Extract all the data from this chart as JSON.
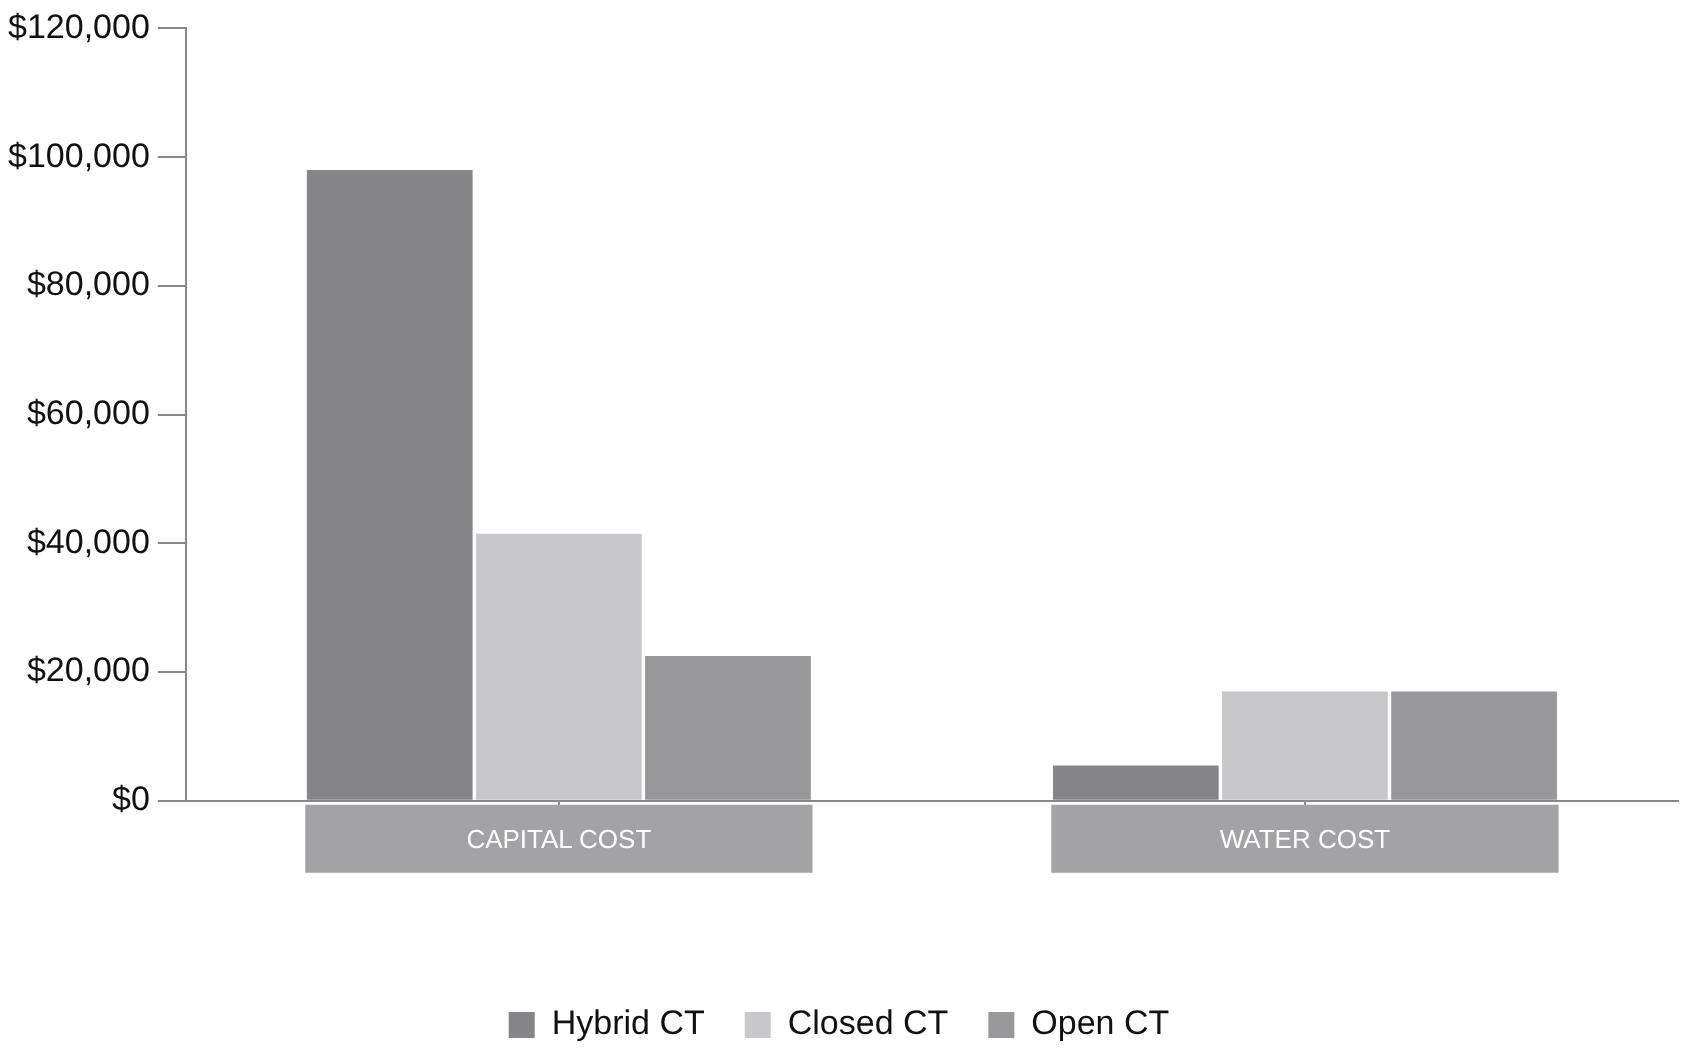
{
  "chart_data": {
    "type": "bar",
    "categories": [
      "CAPITAL COST",
      "WATER COST"
    ],
    "series": [
      {
        "name": "Hybrid CT",
        "color": "#858587",
        "values": [
          98000,
          5500
        ]
      },
      {
        "name": "Closed CT",
        "color": "#c8c8ca",
        "values": [
          41500,
          17000
        ]
      },
      {
        "name": "Open CT",
        "color": "#98989a",
        "values": [
          22500,
          17000
        ]
      }
    ],
    "ylim": [
      0,
      120000
    ],
    "yticks": [
      {
        "value": 0,
        "label": "$0"
      },
      {
        "value": 20000,
        "label": "$20,000"
      },
      {
        "value": 40000,
        "label": "$40,000"
      },
      {
        "value": 60000,
        "label": "$60,000"
      },
      {
        "value": 80000,
        "label": "$80,000"
      },
      {
        "value": 100000,
        "label": "$100,000"
      },
      {
        "value": 120000,
        "label": "$120,000"
      }
    ],
    "grid": false,
    "legend": "bottom"
  }
}
